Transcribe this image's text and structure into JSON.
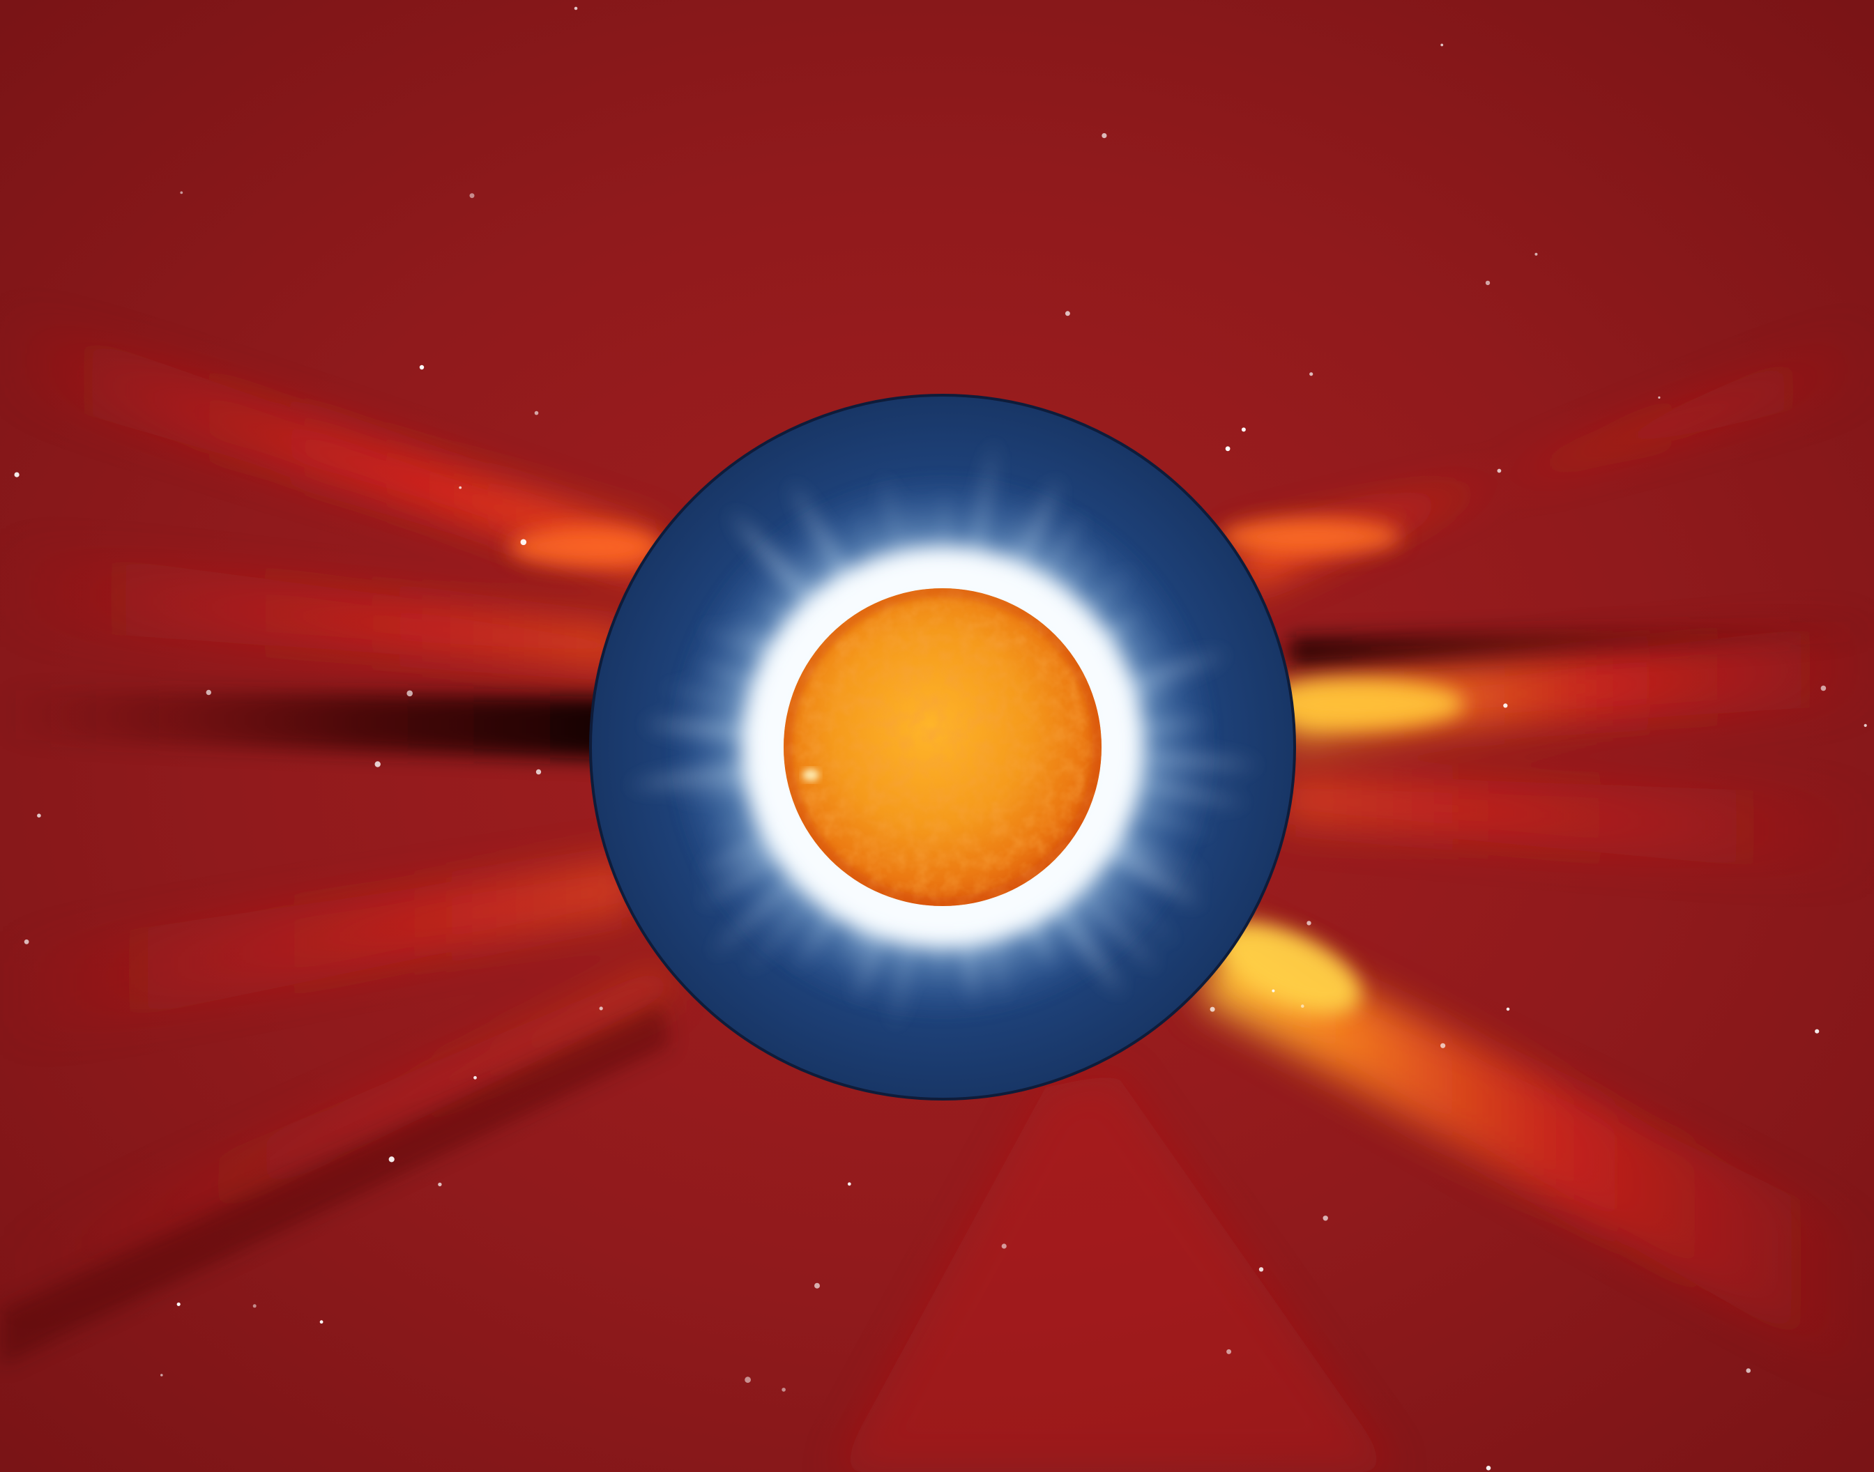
{
  "image": {
    "kind": "composite solar corona photograph",
    "layers": [
      {
        "name": "outer-corona-coronagraph",
        "color": "#8e1a1c"
      },
      {
        "name": "inner-corona-eclipse",
        "color": "#1d3f78"
      },
      {
        "name": "solar-disk",
        "color": "#f08a1a"
      }
    ],
    "features": {
      "streamer_count": 9,
      "star_count": 60
    },
    "colors": {
      "background": "#8e1a1c",
      "streamer": "#e0241a",
      "streamer_bright": "#ffb020",
      "dark_lane": "#2a0608",
      "occulter": "#1d3f78",
      "corona_white": "#f4fbff",
      "sun_core": "#ffb52a",
      "sun_edge": "#e8650c"
    }
  }
}
